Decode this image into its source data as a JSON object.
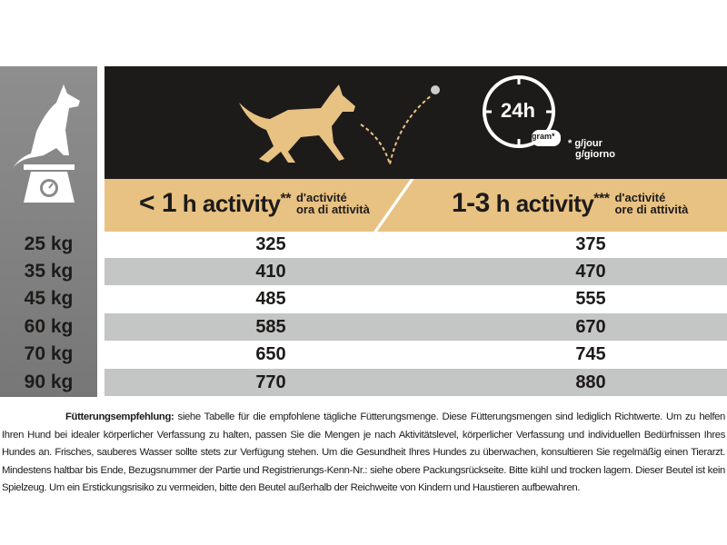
{
  "header": {
    "clock_label": "24h",
    "bowl_label": "gram*",
    "unit_note_1": "* g/jour",
    "unit_note_2": "g/giorno"
  },
  "columns": [
    {
      "prefix": "< 1",
      "main": " h activity",
      "stars": "**",
      "fr": "d'activité",
      "it": "ora di attività"
    },
    {
      "prefix": "1-3",
      "main": " h activity",
      "stars": "***",
      "fr": "d'activité",
      "it": "ore di attività"
    }
  ],
  "rows": [
    {
      "weight": "25 kg",
      "low": "325",
      "high": "375"
    },
    {
      "weight": "35 kg",
      "low": "410",
      "high": "470"
    },
    {
      "weight": "45 kg",
      "low": "485",
      "high": "555"
    },
    {
      "weight": "60 kg",
      "low": "585",
      "high": "670"
    },
    {
      "weight": "70 kg",
      "low": "650",
      "high": "745"
    },
    {
      "weight": "90 kg",
      "low": "770",
      "high": "880"
    }
  ],
  "footer": {
    "bold": "Fütterungsempfehlung:",
    "text": " siehe Tabelle für die empfohlene tägliche Fütterungsmenge. Diese Fütterungsmengen sind lediglich Richtwerte. Um zu helfen Ihren Hund bei idealer körperlicher Verfassung zu halten, passen Sie die Mengen je nach Aktivitätslevel, körperlicher Verfassung und individuellen Bedürfnissen Ihres Hundes an. Frisches, sauberes Wasser sollte stets zur Verfügung stehen. Um die Gesundheit Ihres Hundes zu überwachen, konsultieren Sie regelmäßig einen Tierarzt. Mindestens haltbar bis Ende, Bezugsnummer der Partie und Registrierungs-Kenn-Nr.: siehe obere Packungsrückseite. Bitte kühl und trocken lagern. Dieser Beutel ist kein Spielzeug. Um ein Erstickungsrisiko zu vermeiden, bitte den Beutel außerhalb der Reichweite von Kindern und Haustieren aufbewahren."
  },
  "colors": {
    "header_bg": "#1d1b1a",
    "band": "#e8c283",
    "dog": "#e8c283",
    "row_alt": "#c4c5c5",
    "left_col": "#858585"
  }
}
